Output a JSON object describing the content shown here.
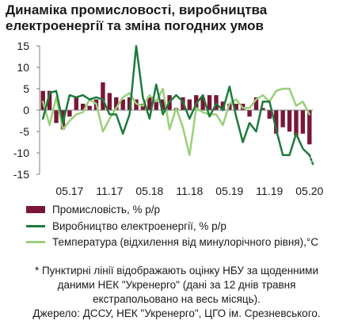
{
  "title": "Динаміка промисловості, виробництва електроенергії та зміна погодних умов",
  "colors": {
    "industry": "#7a1636",
    "electricity": "#1e7a3c",
    "temperature": "#9ad07a"
  },
  "chart_data": {
    "type": "bar+line",
    "title": "Динаміка промисловості, виробництва електроенергії та зміна погодних умов",
    "x_tick_labels": [
      "05.17",
      "11.17",
      "05.18",
      "11.18",
      "05.19",
      "11.19",
      "05.20"
    ],
    "y_tick_labels": [
      "15",
      "10",
      "5",
      "0",
      "-5",
      "-10",
      "-15"
    ],
    "ylim": [
      -15,
      15
    ],
    "grid": false,
    "legend_position": "bottom",
    "periods": [
      "01.17",
      "02.17",
      "03.17",
      "04.17",
      "05.17",
      "06.17",
      "07.17",
      "08.17",
      "09.17",
      "10.17",
      "11.17",
      "12.17",
      "01.18",
      "02.18",
      "03.18",
      "04.18",
      "05.18",
      "06.18",
      "07.18",
      "08.18",
      "09.18",
      "10.18",
      "11.18",
      "12.18",
      "01.19",
      "02.19",
      "03.19",
      "04.19",
      "05.19",
      "06.19",
      "07.19",
      "08.19",
      "09.19",
      "10.19",
      "11.19",
      "12.19",
      "01.20",
      "02.20",
      "03.20",
      "04.20",
      "05.20"
    ],
    "series": [
      {
        "name": "Промисловість, % р/р",
        "type": "bar",
        "values": [
          4.5,
          4.5,
          -3.0,
          -4.5,
          -1.5,
          3.0,
          1.5,
          1.0,
          2.5,
          6.5,
          4.0,
          3.0,
          2.5,
          3.0,
          2.5,
          1.5,
          3.0,
          2.0,
          2.5,
          3.5,
          0.5,
          3.0,
          2.5,
          3.5,
          3.0,
          3.5,
          3.5,
          2.0,
          1.5,
          1.5,
          1.5,
          -1.5,
          3.0,
          0.5,
          -2.0,
          -5.5,
          -4.0,
          -5.0,
          -6.0,
          -5.5,
          -8.0
        ],
        "projected_from_index": 40
      },
      {
        "name": "Виробництво електроенергії, % р/р",
        "type": "line",
        "values": [
          -2.0,
          4.0,
          4.5,
          -3.0,
          3.5,
          3.0,
          3.5,
          2.5,
          3.0,
          2.5,
          -1.0,
          -1.0,
          -5.5,
          -1.0,
          15.0,
          3.0,
          -2.0,
          6.0,
          -1.0,
          2.0,
          3.5,
          2.0,
          -2.0,
          1.5,
          3.5,
          -1.5,
          1.5,
          0.0,
          5.5,
          -1.5,
          -7.5,
          -3.0,
          -5.0,
          2.0,
          2.0,
          -4.5,
          -10.5,
          -10.5,
          -5.5,
          -9.0,
          -10.5
        ],
        "projected_from_index": 40,
        "projected_value": -13.0
      },
      {
        "name": "Температура (відхилення від минулорічного рівня),°С",
        "type": "line",
        "values": [
          2.0,
          -3.5,
          3.0,
          -4.5,
          -2.5,
          -1.0,
          -0.5,
          2.5,
          1.5,
          -5.0,
          -2.0,
          0.5,
          3.0,
          4.0,
          1.5,
          1.0,
          3.5,
          2.0,
          5.0,
          -4.5,
          0.5,
          -4.0,
          -10.5,
          0.5,
          -0.5,
          -1.0,
          -1.0,
          -3.5,
          1.5,
          2.5,
          0.5,
          0.5,
          2.5,
          3.5,
          2.0,
          4.5,
          5.0,
          5.0,
          1.0,
          2.0,
          -1.0
        ]
      }
    ]
  },
  "legend": {
    "industry": "Промисловість, % р/р",
    "electricity": "Виробництво електроенергії, % р/р",
    "temperature": "Температура (відхилення від минулорічного рівня),°С"
  },
  "notes": {
    "line1": "* Пунктирні лінії відображають оцінку НБУ за щоденними",
    "line2": "даними НЕК \"Укренерго\" (дані за 12 днів травня",
    "line3": "екстрапольовано на весь місяць).",
    "line4": "Джерело: ДССУ, НЕК \"Укренерго\", ЦГО ім. Срезневського."
  }
}
